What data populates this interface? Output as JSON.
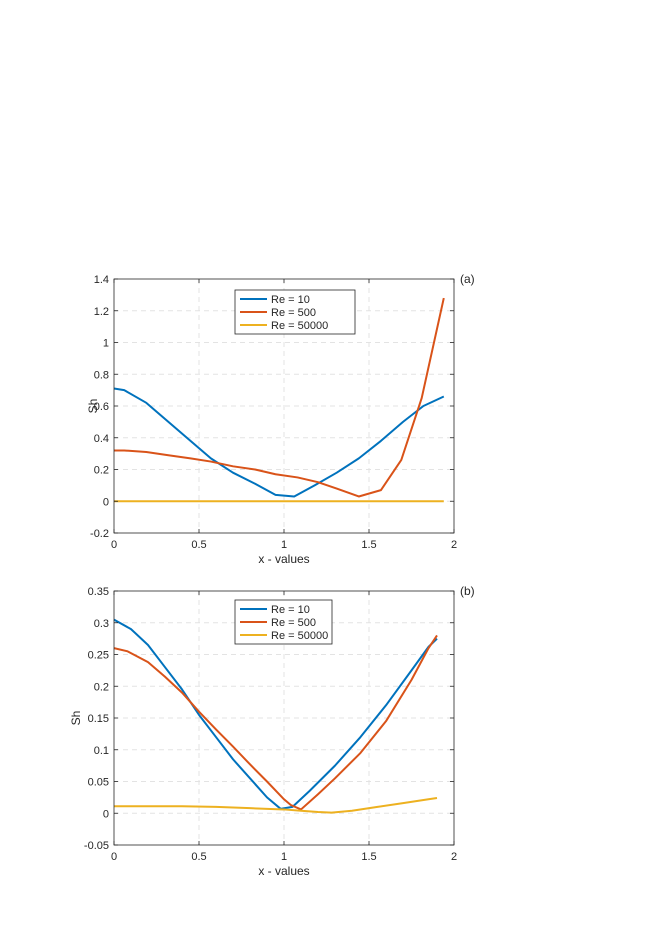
{
  "chart_data": [
    {
      "type": "line",
      "panel_label": "(a)",
      "xlabel": "x - values",
      "ylabel": "Sh",
      "xlim": [
        0,
        2
      ],
      "ylim": [
        -0.2,
        1.4
      ],
      "xticks": [
        0,
        0.5,
        1,
        1.5,
        2
      ],
      "xtick_labels": [
        "0",
        "0.5",
        "1",
        "1.5",
        "2"
      ],
      "yticks": [
        -0.2,
        0,
        0.2,
        0.4,
        0.6,
        0.8,
        1,
        1.2,
        1.4
      ],
      "ytick_labels": [
        "-0.2",
        "0",
        "0.2",
        "0.4",
        "0.6",
        "0.8",
        "1",
        "1.2",
        "1.4"
      ],
      "grid": true,
      "legend_position": "top-center",
      "series": [
        {
          "name": "Re = 10",
          "color": "#0072BD",
          "x": [
            0,
            0.06,
            0.19,
            0.32,
            0.45,
            0.57,
            0.7,
            0.83,
            0.95,
            1.06,
            1.18,
            1.31,
            1.44,
            1.57,
            1.7,
            1.82,
            1.94
          ],
          "y": [
            0.71,
            0.7,
            0.62,
            0.5,
            0.38,
            0.27,
            0.18,
            0.11,
            0.04,
            0.03,
            0.1,
            0.18,
            0.27,
            0.38,
            0.5,
            0.6,
            0.66
          ]
        },
        {
          "name": "Re = 500",
          "color": "#D95319",
          "x": [
            0,
            0.06,
            0.19,
            0.32,
            0.45,
            0.57,
            0.7,
            0.83,
            0.95,
            1.08,
            1.2,
            1.31,
            1.44,
            1.57,
            1.69,
            1.81,
            1.94
          ],
          "y": [
            0.32,
            0.32,
            0.31,
            0.29,
            0.27,
            0.25,
            0.22,
            0.2,
            0.17,
            0.15,
            0.12,
            0.08,
            0.03,
            0.07,
            0.26,
            0.65,
            1.28
          ]
        },
        {
          "name": "Re = 50000",
          "color": "#EDB120",
          "x": [
            0,
            0.5,
            1,
            1.5,
            1.94
          ],
          "y": [
            0,
            0,
            0,
            0,
            0
          ]
        }
      ]
    },
    {
      "type": "line",
      "panel_label": "(b)",
      "xlabel": "x - values",
      "ylabel": "Sh",
      "xlim": [
        0,
        2
      ],
      "ylim": [
        -0.05,
        0.35
      ],
      "xticks": [
        0,
        0.5,
        1,
        1.5,
        2
      ],
      "xtick_labels": [
        "0",
        "0.5",
        "1",
        "1.5",
        "2"
      ],
      "yticks": [
        -0.05,
        0,
        0.05,
        0.1,
        0.15,
        0.2,
        0.25,
        0.3,
        0.35
      ],
      "ytick_labels": [
        "-0.05",
        "0",
        "0.05",
        "0.1",
        "0.15",
        "0.2",
        "0.25",
        "0.3",
        "0.35"
      ],
      "grid": true,
      "legend_position": "top-center",
      "series": [
        {
          "name": "Re = 10",
          "color": "#0072BD",
          "x": [
            0,
            0.1,
            0.2,
            0.3,
            0.4,
            0.5,
            0.6,
            0.7,
            0.8,
            0.9,
            0.98,
            1.05,
            1.15,
            1.3,
            1.45,
            1.6,
            1.75,
            1.85,
            1.9
          ],
          "y": [
            0.305,
            0.29,
            0.265,
            0.23,
            0.195,
            0.155,
            0.12,
            0.085,
            0.055,
            0.025,
            0.007,
            0.01,
            0.035,
            0.075,
            0.12,
            0.17,
            0.225,
            0.262,
            0.275
          ]
        },
        {
          "name": "Re = 500",
          "color": "#D95319",
          "x": [
            0,
            0.08,
            0.2,
            0.3,
            0.4,
            0.5,
            0.6,
            0.7,
            0.8,
            0.9,
            1.0,
            1.04,
            1.1,
            1.2,
            1.3,
            1.45,
            1.6,
            1.75,
            1.85,
            1.9
          ],
          "y": [
            0.26,
            0.255,
            0.238,
            0.215,
            0.19,
            0.16,
            0.132,
            0.105,
            0.077,
            0.05,
            0.022,
            0.013,
            0.006,
            0.03,
            0.055,
            0.095,
            0.145,
            0.21,
            0.26,
            0.28
          ]
        },
        {
          "name": "Re = 50000",
          "color": "#EDB120",
          "x": [
            0,
            0.2,
            0.4,
            0.6,
            0.8,
            1.0,
            1.1,
            1.2,
            1.28,
            1.4,
            1.55,
            1.7,
            1.85,
            1.9
          ],
          "y": [
            0.011,
            0.011,
            0.011,
            0.01,
            0.008,
            0.006,
            0.004,
            0.002,
            0.001,
            0.004,
            0.01,
            0.016,
            0.022,
            0.024
          ]
        }
      ]
    }
  ]
}
